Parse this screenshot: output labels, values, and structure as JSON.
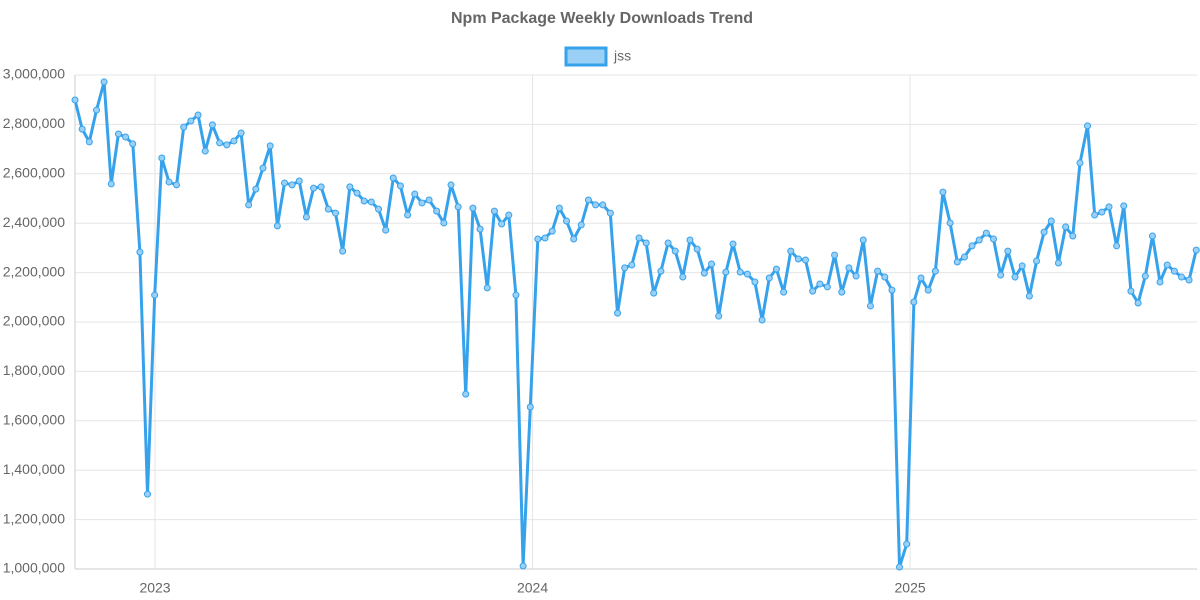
{
  "chart_data": {
    "type": "line",
    "title": "Npm Package Weekly Downloads Trend",
    "x": [
      2022.788,
      2022.807,
      2022.826,
      2022.845,
      2022.865,
      2022.884,
      2022.903,
      2022.922,
      2022.941,
      2022.96,
      2022.98,
      2022.999,
      2023.018,
      2023.037,
      2023.057,
      2023.076,
      2023.095,
      2023.114,
      2023.133,
      2023.152,
      2023.171,
      2023.19,
      2023.209,
      2023.228,
      2023.248,
      2023.267,
      2023.286,
      2023.305,
      2023.324,
      2023.343,
      2023.363,
      2023.382,
      2023.401,
      2023.42,
      2023.44,
      2023.459,
      2023.478,
      2023.497,
      2023.516,
      2023.535,
      2023.554,
      2023.573,
      2023.592,
      2023.611,
      2023.631,
      2023.65,
      2023.669,
      2023.688,
      2023.707,
      2023.726,
      2023.746,
      2023.765,
      2023.784,
      2023.803,
      2023.823,
      2023.842,
      2023.861,
      2023.88,
      2023.899,
      2023.918,
      2023.937,
      2023.956,
      2023.975,
      2023.994,
      2024.014,
      2024.033,
      2024.052,
      2024.071,
      2024.09,
      2024.109,
      2024.129,
      2024.148,
      2024.167,
      2024.186,
      2024.206,
      2024.225,
      2024.244,
      2024.263,
      2024.282,
      2024.301,
      2024.321,
      2024.34,
      2024.359,
      2024.378,
      2024.398,
      2024.417,
      2024.436,
      2024.455,
      2024.474,
      2024.493,
      2024.512,
      2024.531,
      2024.55,
      2024.569,
      2024.589,
      2024.608,
      2024.627,
      2024.646,
      2024.665,
      2024.684,
      2024.704,
      2024.723,
      2024.742,
      2024.761,
      2024.781,
      2024.8,
      2024.819,
      2024.838,
      2024.857,
      2024.876,
      2024.895,
      2024.914,
      2024.933,
      2024.952,
      2024.972,
      2024.991,
      2025.01,
      2025.029,
      2025.048,
      2025.067,
      2025.087,
      2025.106,
      2025.125,
      2025.144,
      2025.164,
      2025.183,
      2025.202,
      2025.221,
      2025.24,
      2025.259,
      2025.278,
      2025.297,
      2025.316,
      2025.335,
      2025.355,
      2025.374,
      2025.393,
      2025.412,
      2025.431,
      2025.45,
      2025.47,
      2025.489,
      2025.508,
      2025.527,
      2025.547,
      2025.566,
      2025.585,
      2025.604,
      2025.623,
      2025.642,
      2025.662,
      2025.681,
      2025.7,
      2025.719,
      2025.739,
      2025.758
    ],
    "series": [
      {
        "name": "jss",
        "color": "#36a2eb",
        "fill": "#9ad0f5",
        "values": [
          2899000,
          2781000,
          2729000,
          2858000,
          2972000,
          2559000,
          2761000,
          2749000,
          2721000,
          2283000,
          1303000,
          2109000,
          2664000,
          2567000,
          2555000,
          2789000,
          2814000,
          2838000,
          2692000,
          2798000,
          2725000,
          2717000,
          2733000,
          2765000,
          2474000,
          2538000,
          2623000,
          2713000,
          2389000,
          2563000,
          2555000,
          2571000,
          2425000,
          2542000,
          2547000,
          2457000,
          2441000,
          2287000,
          2547000,
          2522000,
          2490000,
          2486000,
          2457000,
          2372000,
          2583000,
          2551000,
          2433000,
          2518000,
          2482000,
          2494000,
          2449000,
          2401000,
          2555000,
          2466000,
          1708000,
          2461000,
          2376000,
          2138000,
          2449000,
          2397000,
          2433000,
          2109000,
          1012000,
          1656000,
          2336000,
          2340000,
          2368000,
          2461000,
          2409000,
          2336000,
          2393000,
          2494000,
          2474000,
          2474000,
          2441000,
          2036000,
          2219000,
          2231000,
          2340000,
          2320000,
          2117000,
          2206000,
          2320000,
          2287000,
          2182000,
          2332000,
          2295000,
          2198000,
          2235000,
          2024000,
          2202000,
          2316000,
          2202000,
          2194000,
          2162000,
          2008000,
          2178000,
          2214000,
          2121000,
          2287000,
          2255000,
          2251000,
          2125000,
          2154000,
          2142000,
          2271000,
          2121000,
          2219000,
          2186000,
          2332000,
          2065000,
          2206000,
          2182000,
          2129000,
          1008000,
          1101000,
          2081000,
          2178000,
          2129000,
          2206000,
          2526000,
          2401000,
          2243000,
          2263000,
          2308000,
          2332000,
          2360000,
          2336000,
          2190000,
          2287000,
          2182000,
          2227000,
          2105000,
          2247000,
          2364000,
          2409000,
          2239000,
          2385000,
          2348000,
          2644000,
          2794000,
          2433000,
          2445000,
          2466000,
          2308000,
          2470000,
          2125000,
          2077000,
          2186000,
          2348000,
          2162000,
          2231000,
          2206000,
          2182000,
          2170000,
          2291000
        ]
      }
    ],
    "xlim": [
      2022.788,
      2025.76
    ],
    "xticks": [
      2023,
      2024,
      2025
    ],
    "ylim": [
      1000000,
      3000000
    ],
    "yticks": [
      {
        "value": 1000000,
        "label": "1,000,000"
      },
      {
        "value": 1200000,
        "label": "1,200,000"
      },
      {
        "value": 1400000,
        "label": "1,400,000"
      },
      {
        "value": 1600000,
        "label": "1,600,000"
      },
      {
        "value": 1800000,
        "label": "1,800,000"
      },
      {
        "value": 2000000,
        "label": "2,000,000"
      },
      {
        "value": 2200000,
        "label": "2,200,000"
      },
      {
        "value": 2400000,
        "label": "2,400,000"
      },
      {
        "value": 2600000,
        "label": "2,600,000"
      },
      {
        "value": 2800000,
        "label": "2,800,000"
      },
      {
        "value": 3000000,
        "label": "3,000,000"
      }
    ],
    "grid": true,
    "legend": "top"
  }
}
